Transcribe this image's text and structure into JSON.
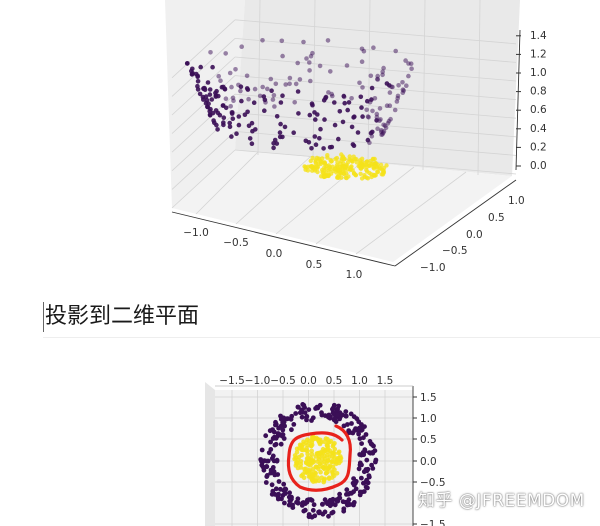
{
  "heading": "投影到二维平面",
  "watermark": "知乎 @JFREEMDOM",
  "colors": {
    "outer_points": "#3b0f57",
    "inner_points": "#f5e21a",
    "annotation": "#e8221c",
    "pane": "#f2f2f2"
  },
  "chart_data": [
    {
      "type": "scatter",
      "projection": "3d",
      "x_ticks": [
        "−1.0",
        "−0.5",
        "0.0",
        "0.5",
        "1.0"
      ],
      "y_ticks": [
        "−1.0",
        "−0.5",
        "0.0",
        "0.5",
        "1.0"
      ],
      "z_ticks": [
        "0.0",
        "0.2",
        "0.4",
        "0.6",
        "0.8",
        "1.0",
        "1.2",
        "1.4"
      ],
      "series": [
        {
          "color": "#3b0f57",
          "shape": "outer ring lifted onto paraboloid, z ≈ x²+y²"
        },
        {
          "color": "#f5e21a",
          "shape": "inner disk near z = 0"
        }
      ]
    },
    {
      "type": "scatter",
      "projection": "3d viewed from top",
      "x_ticks": [
        "−1.5",
        "−1.0",
        "−0.5",
        "0.0",
        "0.5",
        "1.0",
        "1.5"
      ],
      "y_ticks": [
        "1.5",
        "1.0",
        "0.5",
        "0.0",
        "−0.5",
        "−1.5"
      ],
      "annotation": "red hand-drawn loop around inner yellow cluster"
    }
  ]
}
